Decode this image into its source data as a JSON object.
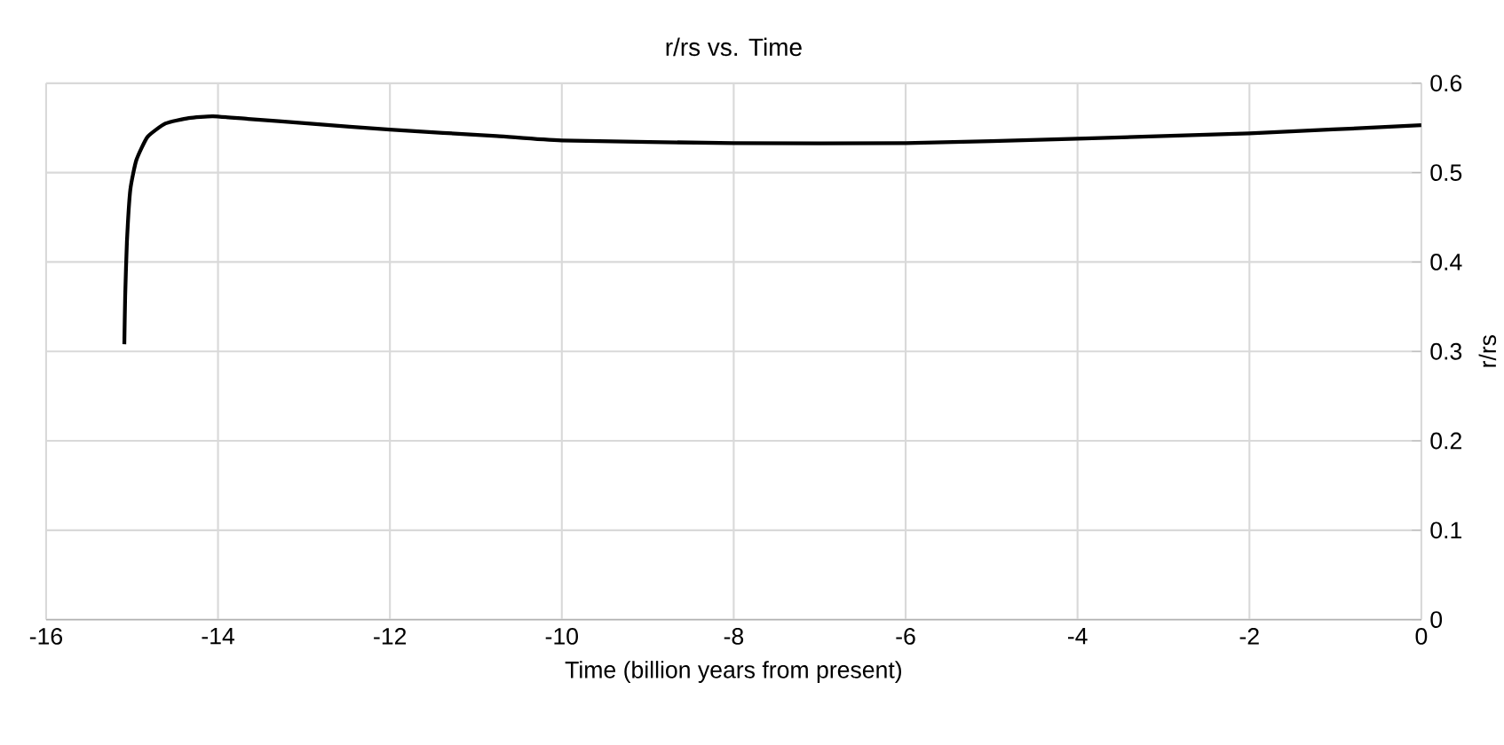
{
  "chart_data": {
    "type": "line",
    "title": "r/rs vs. Time",
    "xlabel": "Time (billion years from present)",
    "ylabel": "r/rs",
    "series": [
      {
        "color": "#000000",
        "x": [
          -15.09,
          -15.08,
          -15.06,
          -15.02,
          -14.95,
          -14.82,
          -14.61,
          -14.34,
          -14.06,
          -13.65,
          -12.96,
          -12.0,
          -10.76,
          -10.0,
          -8.0,
          -6.0,
          -4.0,
          -2.0,
          0
        ],
        "values": [
          0.308,
          0.362,
          0.422,
          0.481,
          0.514,
          0.54,
          0.555,
          0.561,
          0.563,
          0.56,
          0.555,
          0.548,
          0.541,
          0.536,
          0.533,
          0.533,
          0.538,
          0.544,
          0.553
        ]
      }
    ],
    "xlim": [
      -16,
      0
    ],
    "xticks": [
      -16,
      -14,
      -12,
      -10,
      -8,
      -6,
      -4,
      -2,
      0
    ],
    "ylim": [
      0,
      0.6
    ],
    "yticks": [
      0,
      0.1,
      0.2,
      0.3,
      0.4,
      0.5,
      0.6
    ],
    "grid": true,
    "marker": "none",
    "line_style": "solid"
  }
}
